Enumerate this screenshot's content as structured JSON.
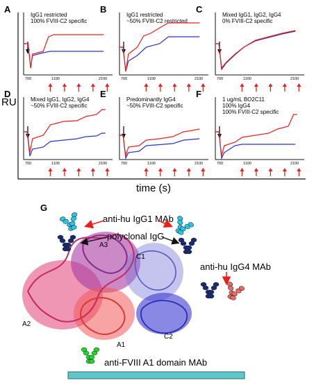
{
  "y_axis_label": "RU",
  "x_axis_label": "time (s)",
  "panels": [
    {
      "letter": "A",
      "lines": [
        "IgG1 restricted",
        "100% FVIII-C2 specific"
      ],
      "ticks": [
        "700",
        "1100",
        "2100"
      ]
    },
    {
      "letter": "B",
      "lines": [
        "IgG1 restricted",
        "~50% FVIII-C2 restricted"
      ],
      "ticks": [
        "700",
        "1100",
        "2100"
      ]
    },
    {
      "letter": "C",
      "lines": [
        "Mixed IgG1, IgG2, IgG4",
        "0% FVIII-C2 specific"
      ],
      "ticks": [
        "700",
        "1100",
        "2100"
      ]
    },
    {
      "letter": "D",
      "lines": [
        "Mixed IgG1, IgG2, IgG4",
        "~50% FVIII-C2 specific"
      ],
      "ticks": [
        "700",
        "1100",
        "2100"
      ]
    },
    {
      "letter": "E",
      "lines": [
        "Predominantly IgG4",
        "~50% FVIII-C2 specific"
      ],
      "ticks": [
        "700",
        "1100",
        "2100"
      ]
    },
    {
      "letter": "F",
      "lines": [
        "1 ug/mL BO2C11",
        "100% IgG4",
        "100% FVIII-C2 specific"
      ],
      "ticks": [
        "700",
        "1100",
        "2100"
      ]
    }
  ],
  "structure": {
    "letter": "G",
    "labels": {
      "anti_igg1": "anti-hu IgG1 MAb",
      "polyclonal": "polyclonal IgG",
      "anti_igg4": "anti-hu IgG4 MAb",
      "anti_a1": "anti-FVIII A1 domain MAb",
      "a3": "A3",
      "c1": "C1",
      "a2": "A2",
      "a1": "A1",
      "c2": "C2"
    }
  },
  "colors": {
    "trace_red": "#e8201c",
    "trace_blue": "#2b32c8",
    "arrow_red": "#e8201c",
    "ab_cyan": "#29c8de",
    "ab_navy": "#1b2a6b",
    "ab_green": "#22d822",
    "ab_salmon": "#f06a5c",
    "chip": "#5fc7c9",
    "domain_a2": "#e0306e",
    "domain_a3": "#a02a9a",
    "domain_a1": "#f04a4a",
    "domain_c1": "#7070d8",
    "domain_c2": "#2a2ad0"
  }
}
